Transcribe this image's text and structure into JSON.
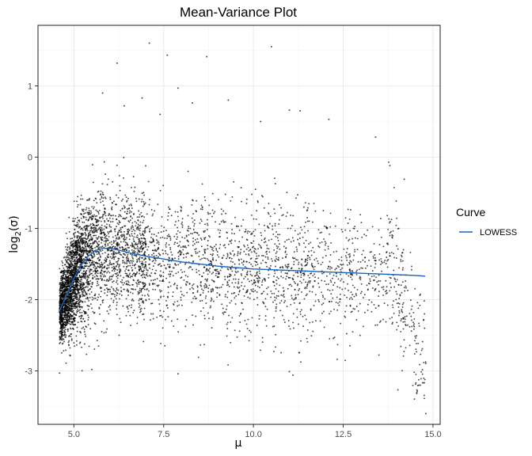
{
  "chart_data": {
    "type": "scatter",
    "title": "Mean-Variance Plot",
    "xlabel": "μ",
    "ylabel": "log",
    "ylabel_sub": "2",
    "ylabel_arg": "(σ)",
    "xlim": [
      4.0,
      15.2
    ],
    "ylim": [
      -3.75,
      1.85
    ],
    "x_ticks": [
      5.0,
      7.5,
      10.0,
      12.5,
      15.0
    ],
    "x_tick_labels": [
      "5.0",
      "7.5",
      "10.0",
      "12.5",
      "15.0"
    ],
    "y_ticks": [
      -3,
      -2,
      -1,
      0,
      1
    ],
    "y_tick_labels": [
      "-3",
      "-2",
      "-1",
      "0",
      "1"
    ],
    "grid": true,
    "legend": {
      "title": "Curve",
      "position": "right",
      "entries": [
        {
          "name": "LOWESS",
          "color": "#1565C0"
        }
      ]
    },
    "series": [
      {
        "name": "LOWESS",
        "kind": "line",
        "color": "#1565C0",
        "x": [
          4.58,
          4.8,
          5.0,
          5.2,
          5.4,
          5.6,
          5.8,
          6.0,
          6.3,
          6.6,
          7.0,
          7.5,
          8.0,
          8.5,
          9.0,
          9.5,
          10.0,
          10.5,
          11.0,
          11.5,
          12.0,
          12.5,
          13.0,
          13.5,
          14.0,
          14.5,
          14.78
        ],
        "y": [
          -2.18,
          -1.93,
          -1.7,
          -1.52,
          -1.39,
          -1.31,
          -1.28,
          -1.28,
          -1.31,
          -1.35,
          -1.39,
          -1.43,
          -1.47,
          -1.5,
          -1.53,
          -1.55,
          -1.57,
          -1.58,
          -1.59,
          -1.6,
          -1.61,
          -1.62,
          -1.63,
          -1.64,
          -1.65,
          -1.66,
          -1.67
        ]
      }
    ],
    "scatter_points": {
      "color": "#000000",
      "outliers": [
        [
          7.1,
          1.6
        ],
        [
          7.6,
          1.43
        ],
        [
          6.2,
          1.32
        ],
        [
          8.7,
          1.41
        ],
        [
          10.5,
          1.55
        ],
        [
          5.8,
          0.9
        ],
        [
          7.9,
          0.97
        ],
        [
          6.9,
          0.83
        ],
        [
          8.3,
          0.76
        ],
        [
          9.3,
          0.8
        ],
        [
          6.4,
          0.72
        ],
        [
          7.4,
          0.6
        ],
        [
          11.0,
          0.66
        ],
        [
          11.3,
          0.65
        ],
        [
          12.1,
          0.53
        ],
        [
          10.2,
          0.5
        ],
        [
          13.4,
          0.28
        ],
        [
          14.2,
          -0.31
        ],
        [
          7.9,
          -3.04
        ],
        [
          11.0,
          -3.01
        ],
        [
          11.1,
          -3.06
        ],
        [
          5.5,
          -2.98
        ],
        [
          14.8,
          -3.6
        ],
        [
          4.6,
          -3.03
        ],
        [
          13.8,
          -0.12
        ]
      ]
    }
  }
}
